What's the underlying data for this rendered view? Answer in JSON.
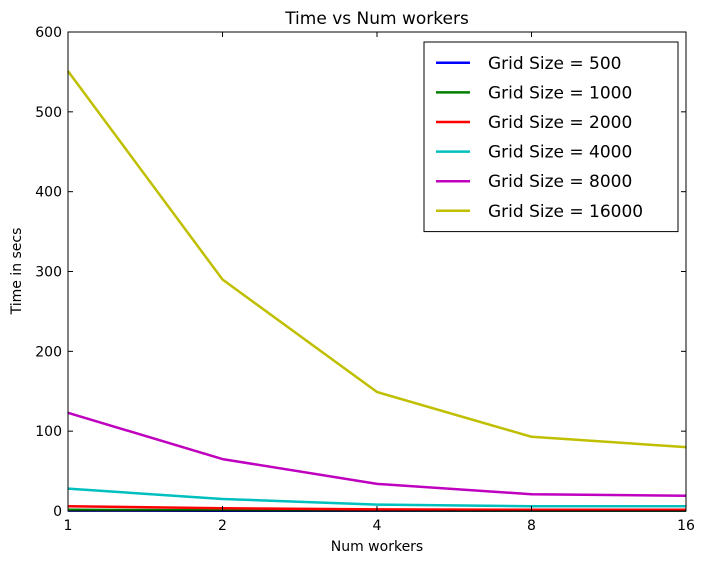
{
  "chart_data": {
    "type": "line",
    "title": "Time vs Num workers",
    "xlabel": "Num workers",
    "ylabel": "Time in secs",
    "x_scale": "log2",
    "x": [
      1,
      2,
      4,
      8,
      16
    ],
    "xticks": [
      "1",
      "2",
      "4",
      "8",
      "16"
    ],
    "xlim": [
      1,
      16
    ],
    "ylim": [
      0,
      600
    ],
    "yticks": [
      "0",
      "100",
      "200",
      "300",
      "400",
      "500",
      "600"
    ],
    "legend_position": "top-right",
    "grid": false,
    "series": [
      {
        "name": "Grid Size = 500",
        "color": "#0000ff",
        "values": [
          0.5,
          0.3,
          0.2,
          0.2,
          0.2
        ]
      },
      {
        "name": "Grid Size = 1000",
        "color": "#008000",
        "values": [
          1.5,
          0.9,
          0.6,
          0.5,
          0.5
        ]
      },
      {
        "name": "Grid Size = 2000",
        "color": "#ff0000",
        "values": [
          6,
          3.5,
          2,
          1.5,
          1.5
        ]
      },
      {
        "name": "Grid Size = 4000",
        "color": "#00bfbf",
        "values": [
          28,
          15,
          8,
          6,
          6
        ]
      },
      {
        "name": "Grid Size = 8000",
        "color": "#bf00bf",
        "values": [
          123,
          65,
          34,
          21,
          19
        ]
      },
      {
        "name": "Grid Size = 16000",
        "color": "#bfbf00",
        "values": [
          551,
          290,
          149,
          93,
          80
        ]
      }
    ]
  }
}
